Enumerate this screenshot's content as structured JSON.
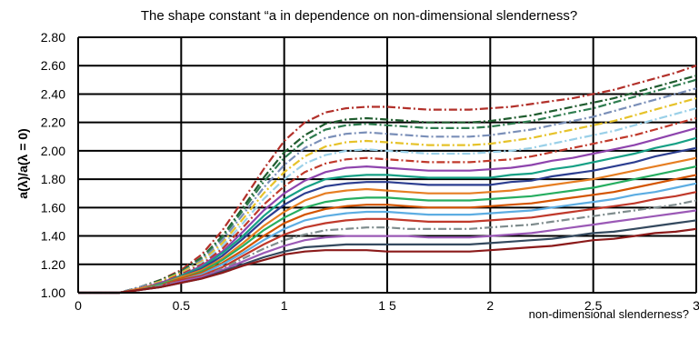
{
  "chart_data": {
    "type": "line",
    "title": "The shape constant “a   in dependence on non-dimensional slenderness?",
    "xlabel": "non-dimensional slenderness?",
    "ylabel": "a(λ)/a(λ = 0)",
    "xlim": [
      0,
      3
    ],
    "ylim": [
      1.0,
      2.8
    ],
    "x_ticks": [
      0,
      0.5,
      1,
      1.5,
      2,
      2.5,
      3
    ],
    "x_tick_labels": [
      "0",
      "0.5",
      "1",
      "1 5",
      "2",
      "2.5",
      "3"
    ],
    "y_ticks": [
      1.0,
      1.2,
      1.4,
      1.6,
      1.8,
      2.0,
      2.2,
      2.4,
      2.6,
      2.8
    ],
    "y_tick_labels": [
      "1.00",
      "1.20",
      "1.40",
      "1.60",
      "1.80",
      "2.00",
      "2.20",
      "2.40",
      "2.60",
      "2.80"
    ],
    "grid": true,
    "legend": "none",
    "x": [
      0,
      0.1,
      0.2,
      0.3,
      0.4,
      0.5,
      0.6,
      0.7,
      0.8,
      0.9,
      1.0,
      1.1,
      1.2,
      1.3,
      1.4,
      1.5,
      1.6,
      1.7,
      1.8,
      1.9,
      2.0,
      2.1,
      2.2,
      2.3,
      2.4,
      2.5,
      2.6,
      2.7,
      2.8,
      2.9,
      3.0
    ],
    "series": [
      {
        "color": "#b2302a",
        "dash": "dashdot",
        "values": [
          1.0,
          1.0,
          1.0,
          1.04,
          1.09,
          1.16,
          1.27,
          1.44,
          1.65,
          1.87,
          2.07,
          2.2,
          2.27,
          2.3,
          2.31,
          2.31,
          2.3,
          2.29,
          2.29,
          2.29,
          2.3,
          2.31,
          2.33,
          2.35,
          2.37,
          2.4,
          2.43,
          2.47,
          2.51,
          2.55,
          2.6
        ]
      },
      {
        "color": "#1f5c2e",
        "dash": "dashdot",
        "values": [
          1.0,
          1.0,
          1.0,
          1.04,
          1.09,
          1.15,
          1.25,
          1.4,
          1.6,
          1.81,
          1.99,
          2.11,
          2.19,
          2.22,
          2.23,
          2.22,
          2.21,
          2.2,
          2.2,
          2.2,
          2.21,
          2.23,
          2.25,
          2.28,
          2.31,
          2.34,
          2.37,
          2.41,
          2.45,
          2.49,
          2.53
        ]
      },
      {
        "color": "#2e7d4f",
        "dash": "dashdot",
        "values": [
          1.0,
          1.0,
          1.0,
          1.04,
          1.08,
          1.15,
          1.24,
          1.39,
          1.58,
          1.78,
          1.95,
          2.07,
          2.15,
          2.18,
          2.19,
          2.18,
          2.17,
          2.16,
          2.16,
          2.16,
          2.17,
          2.19,
          2.21,
          2.24,
          2.27,
          2.3,
          2.34,
          2.38,
          2.42,
          2.46,
          2.5
        ]
      },
      {
        "color": "#7a8fb8",
        "dash": "dashdot",
        "values": [
          1.0,
          1.0,
          1.0,
          1.04,
          1.08,
          1.14,
          1.23,
          1.37,
          1.55,
          1.74,
          1.9,
          2.02,
          2.09,
          2.12,
          2.13,
          2.12,
          2.11,
          2.1,
          2.1,
          2.1,
          2.11,
          2.13,
          2.15,
          2.18,
          2.21,
          2.24,
          2.28,
          2.32,
          2.36,
          2.4,
          2.44
        ]
      },
      {
        "color": "#e6c229",
        "dash": "dashdot",
        "values": [
          1.0,
          1.0,
          1.0,
          1.03,
          1.08,
          1.14,
          1.22,
          1.35,
          1.52,
          1.7,
          1.85,
          1.96,
          2.03,
          2.06,
          2.07,
          2.06,
          2.05,
          2.04,
          2.04,
          2.04,
          2.05,
          2.07,
          2.09,
          2.12,
          2.15,
          2.18,
          2.21,
          2.25,
          2.29,
          2.33,
          2.37
        ]
      },
      {
        "color": "#9ad0e8",
        "dash": "dashdot",
        "values": [
          1.0,
          1.0,
          1.0,
          1.03,
          1.07,
          1.13,
          1.21,
          1.33,
          1.49,
          1.66,
          1.8,
          1.91,
          1.97,
          2.0,
          2.01,
          2.0,
          1.99,
          1.98,
          1.98,
          1.98,
          1.99,
          2.0,
          2.02,
          2.05,
          2.08,
          2.11,
          2.14,
          2.18,
          2.22,
          2.26,
          2.3
        ]
      },
      {
        "color": "#c0392b",
        "dash": "dashdot",
        "values": [
          1.0,
          1.0,
          1.0,
          1.03,
          1.07,
          1.13,
          1.2,
          1.31,
          1.46,
          1.62,
          1.75,
          1.85,
          1.91,
          1.94,
          1.95,
          1.94,
          1.93,
          1.92,
          1.92,
          1.92,
          1.93,
          1.94,
          1.96,
          1.99,
          2.02,
          2.05,
          2.08,
          2.11,
          2.15,
          2.19,
          2.23
        ]
      },
      {
        "color": "#8e44ad",
        "dash": "solid",
        "values": [
          1.0,
          1.0,
          1.0,
          1.03,
          1.07,
          1.12,
          1.19,
          1.29,
          1.43,
          1.58,
          1.7,
          1.79,
          1.85,
          1.88,
          1.89,
          1.88,
          1.87,
          1.86,
          1.86,
          1.86,
          1.87,
          1.88,
          1.9,
          1.93,
          1.95,
          1.98,
          2.01,
          2.04,
          2.08,
          2.12,
          2.16
        ]
      },
      {
        "color": "#16a085",
        "dash": "solid",
        "values": [
          1.0,
          1.0,
          1.0,
          1.03,
          1.06,
          1.12,
          1.18,
          1.28,
          1.4,
          1.54,
          1.66,
          1.74,
          1.8,
          1.82,
          1.83,
          1.83,
          1.82,
          1.81,
          1.81,
          1.81,
          1.81,
          1.83,
          1.84,
          1.87,
          1.89,
          1.92,
          1.95,
          1.98,
          2.02,
          2.05,
          2.09
        ]
      },
      {
        "color": "#2c3e90",
        "dash": "solid",
        "values": [
          1.0,
          1.0,
          1.0,
          1.03,
          1.06,
          1.11,
          1.17,
          1.26,
          1.38,
          1.51,
          1.62,
          1.7,
          1.75,
          1.77,
          1.78,
          1.78,
          1.77,
          1.76,
          1.76,
          1.76,
          1.76,
          1.78,
          1.79,
          1.82,
          1.84,
          1.86,
          1.89,
          1.92,
          1.96,
          1.99,
          2.02
        ]
      },
      {
        "color": "#e67e22",
        "dash": "solid",
        "values": [
          1.0,
          1.0,
          1.0,
          1.03,
          1.06,
          1.11,
          1.16,
          1.24,
          1.35,
          1.47,
          1.57,
          1.65,
          1.7,
          1.72,
          1.73,
          1.72,
          1.71,
          1.7,
          1.7,
          1.7,
          1.71,
          1.72,
          1.74,
          1.76,
          1.78,
          1.8,
          1.83,
          1.86,
          1.89,
          1.92,
          1.95
        ]
      },
      {
        "color": "#27ae60",
        "dash": "solid",
        "values": [
          1.0,
          1.0,
          1.0,
          1.02,
          1.06,
          1.1,
          1.15,
          1.23,
          1.33,
          1.44,
          1.53,
          1.6,
          1.64,
          1.66,
          1.67,
          1.67,
          1.66,
          1.65,
          1.65,
          1.65,
          1.66,
          1.67,
          1.68,
          1.7,
          1.72,
          1.74,
          1.77,
          1.8,
          1.83,
          1.86,
          1.89
        ]
      },
      {
        "color": "#d35400",
        "dash": "solid",
        "values": [
          1.0,
          1.0,
          1.0,
          1.02,
          1.05,
          1.1,
          1.14,
          1.21,
          1.3,
          1.4,
          1.49,
          1.55,
          1.59,
          1.61,
          1.62,
          1.62,
          1.61,
          1.6,
          1.6,
          1.6,
          1.61,
          1.62,
          1.63,
          1.65,
          1.67,
          1.69,
          1.71,
          1.74,
          1.77,
          1.8,
          1.83
        ]
      },
      {
        "color": "#5dade2",
        "dash": "solid",
        "values": [
          1.0,
          1.0,
          1.0,
          1.02,
          1.05,
          1.09,
          1.13,
          1.2,
          1.28,
          1.37,
          1.45,
          1.51,
          1.54,
          1.56,
          1.57,
          1.57,
          1.56,
          1.55,
          1.55,
          1.55,
          1.56,
          1.57,
          1.58,
          1.6,
          1.62,
          1.64,
          1.66,
          1.69,
          1.71,
          1.74,
          1.77
        ]
      },
      {
        "color": "#c0392b",
        "dash": "solid",
        "values": [
          1.0,
          1.0,
          1.0,
          1.02,
          1.05,
          1.09,
          1.12,
          1.18,
          1.26,
          1.34,
          1.41,
          1.46,
          1.49,
          1.51,
          1.52,
          1.52,
          1.51,
          1.5,
          1.5,
          1.5,
          1.51,
          1.52,
          1.53,
          1.55,
          1.57,
          1.59,
          1.61,
          1.63,
          1.66,
          1.68,
          1.71
        ]
      },
      {
        "color": "#7f8c8d",
        "dash": "dashdot",
        "values": [
          1.0,
          1.0,
          1.0,
          1.02,
          1.05,
          1.08,
          1.11,
          1.17,
          1.24,
          1.31,
          1.37,
          1.41,
          1.44,
          1.45,
          1.46,
          1.46,
          1.45,
          1.45,
          1.45,
          1.45,
          1.46,
          1.47,
          1.48,
          1.5,
          1.52,
          1.54,
          1.56,
          1.58,
          1.6,
          1.62,
          1.65
        ]
      },
      {
        "color": "#9b59b6",
        "dash": "solid",
        "values": [
          1.0,
          1.0,
          1.0,
          1.02,
          1.04,
          1.08,
          1.11,
          1.16,
          1.22,
          1.28,
          1.33,
          1.37,
          1.39,
          1.4,
          1.4,
          1.4,
          1.4,
          1.39,
          1.39,
          1.39,
          1.4,
          1.41,
          1.42,
          1.44,
          1.46,
          1.48,
          1.5,
          1.52,
          1.54,
          1.56,
          1.58
        ]
      },
      {
        "color": "#34495e",
        "dash": "solid",
        "values": [
          1.0,
          1.0,
          1.0,
          1.02,
          1.04,
          1.07,
          1.1,
          1.15,
          1.2,
          1.25,
          1.29,
          1.32,
          1.33,
          1.34,
          1.34,
          1.34,
          1.34,
          1.34,
          1.34,
          1.34,
          1.35,
          1.36,
          1.37,
          1.38,
          1.4,
          1.42,
          1.43,
          1.45,
          1.47,
          1.49,
          1.51
        ]
      },
      {
        "color": "#8b1a1a",
        "dash": "solid",
        "values": [
          1.0,
          1.0,
          1.0,
          1.02,
          1.04,
          1.07,
          1.1,
          1.14,
          1.19,
          1.23,
          1.27,
          1.29,
          1.3,
          1.3,
          1.3,
          1.29,
          1.29,
          1.29,
          1.29,
          1.29,
          1.3,
          1.31,
          1.32,
          1.33,
          1.35,
          1.37,
          1.38,
          1.4,
          1.42,
          1.43,
          1.45
        ]
      }
    ]
  }
}
